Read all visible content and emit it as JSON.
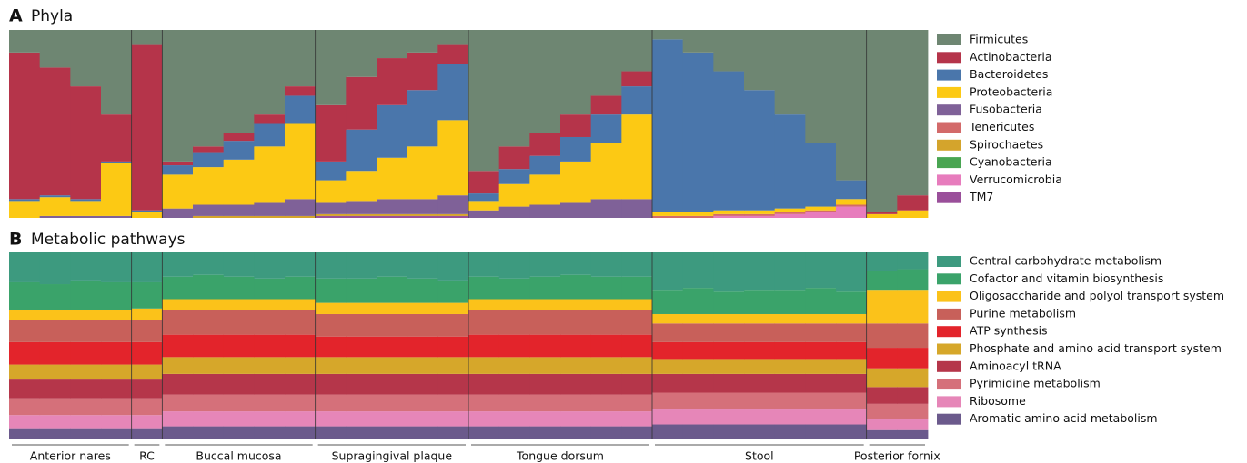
{
  "chart_data": [
    {
      "type": "bar",
      "stacked": true,
      "panel": "A",
      "title": "Phyla",
      "ylim": [
        0,
        100
      ],
      "series": [
        {
          "name": "Firmicutes",
          "color": "#6e8672",
          "values": [
            [
              12,
              20,
              30,
              45
            ],
            [
              8
            ],
            [
              70,
              62,
              55,
              45,
              30
            ],
            [
              40,
              25,
              15,
              12,
              8
            ],
            [
              75,
              62,
              55,
              45,
              35,
              22
            ],
            [
              5,
              12,
              22,
              32,
              45,
              60,
              80
            ],
            [
              97,
              88
            ]
          ]
        },
        {
          "name": "Actinobacteria",
          "color": "#b5344a",
          "values": [
            [
              78,
              68,
              60,
              25
            ],
            [
              88
            ],
            [
              2,
              3,
              4,
              5,
              5
            ],
            [
              30,
              28,
              25,
              20,
              10
            ],
            [
              12,
              12,
              12,
              12,
              10,
              8
            ],
            [
              0,
              0,
              0,
              0,
              0,
              0,
              0
            ],
            [
              1,
              8
            ]
          ]
        },
        {
          "name": "Bacteroidetes",
          "color": "#4a76ab",
          "values": [
            [
              1,
              1,
              1,
              1
            ],
            [
              1
            ],
            [
              5,
              8,
              10,
              12,
              15
            ],
            [
              10,
              22,
              28,
              30,
              30
            ],
            [
              4,
              8,
              10,
              13,
              15,
              15
            ],
            [
              92,
              85,
              74,
              64,
              50,
              34,
              10
            ],
            [
              0,
              0
            ]
          ]
        },
        {
          "name": "Proteobacteria",
          "color": "#fcc914",
          "values": [
            [
              9,
              10,
              8,
              28
            ],
            [
              3
            ],
            [
              18,
              20,
              24,
              30,
              40
            ],
            [
              12,
              16,
              22,
              28,
              40
            ],
            [
              5,
              12,
              16,
              22,
              30,
              45
            ],
            [
              2,
              2,
              2,
              2,
              2,
              2,
              3
            ],
            [
              2,
              4
            ]
          ]
        },
        {
          "name": "Fusobacteria",
          "color": "#7f6198",
          "values": [
            [
              0,
              1,
              1,
              1
            ],
            [
              0
            ],
            [
              5,
              6,
              6,
              7,
              9
            ],
            [
              6,
              7,
              8,
              8,
              10
            ],
            [
              4,
              6,
              7,
              8,
              10,
              10
            ],
            [
              0,
              0,
              0,
              0,
              0,
              0,
              0
            ],
            [
              0,
              0
            ]
          ]
        },
        {
          "name": "Tenericutes",
          "color": "#d36a6a",
          "values": [
            [
              0,
              0,
              0,
              0
            ],
            [
              0
            ],
            [
              0,
              0,
              0,
              0,
              0
            ],
            [
              0,
              0,
              0,
              0,
              0
            ],
            [
              0,
              0,
              0,
              0,
              0,
              0
            ],
            [
              1,
              1,
              1,
              1,
              1,
              1,
              1
            ],
            [
              0,
              0
            ]
          ]
        },
        {
          "name": "Spirochaetes",
          "color": "#d4a42c",
          "values": [
            [
              0,
              0,
              0,
              0
            ],
            [
              0
            ],
            [
              0,
              1,
              1,
              1,
              1
            ],
            [
              1,
              1,
              1,
              1,
              1
            ],
            [
              0,
              0,
              0,
              0,
              0,
              0
            ],
            [
              0,
              0,
              0,
              0,
              0,
              0,
              0
            ],
            [
              0,
              0
            ]
          ]
        },
        {
          "name": "Cyanobacteria",
          "color": "#49a552",
          "values": [
            [
              0,
              0,
              0,
              0
            ],
            [
              0
            ],
            [
              0,
              0,
              0,
              0,
              0
            ],
            [
              0,
              0,
              0,
              0,
              0
            ],
            [
              0,
              0,
              0,
              0,
              0,
              0
            ],
            [
              0,
              0,
              0,
              0,
              0,
              0,
              0
            ],
            [
              0,
              0
            ]
          ]
        },
        {
          "name": "Verrucomicrobia",
          "color": "#e77cbd",
          "values": [
            [
              0,
              0,
              0,
              0
            ],
            [
              0
            ],
            [
              0,
              0,
              0,
              0,
              0
            ],
            [
              0,
              0,
              0,
              0,
              0
            ],
            [
              0,
              0,
              0,
              0,
              0,
              0
            ],
            [
              0,
              0,
              1,
              1,
              2,
              3,
              6
            ],
            [
              0,
              0
            ]
          ]
        },
        {
          "name": "TM7",
          "color": "#9a4f9a",
          "values": [
            [
              0,
              0,
              0,
              0
            ],
            [
              0
            ],
            [
              0,
              0,
              0,
              0,
              0
            ],
            [
              1,
              1,
              1,
              1,
              1
            ],
            [
              0,
              0,
              0,
              0,
              0,
              0
            ],
            [
              0,
              0,
              0,
              0,
              0,
              0,
              0
            ],
            [
              0,
              0
            ]
          ]
        }
      ]
    },
    {
      "type": "bar",
      "stacked": true,
      "panel": "B",
      "title": "Metabolic pathways",
      "ylim": [
        0,
        100
      ],
      "categories": [
        "Anterior nares",
        "RC",
        "Buccal mucosa",
        "Supragingival plaque",
        "Tongue dorsum",
        "Stool",
        "Posterior fornix"
      ],
      "series": [
        {
          "name": "Central carbohydrate metabolism",
          "color": "#3d9a7f",
          "values": [
            [
              16,
              17,
              15,
              16
            ],
            [
              16
            ],
            [
              13,
              12,
              13,
              14,
              13
            ],
            [
              14,
              14,
              13,
              14,
              15
            ],
            [
              13,
              14,
              13,
              12,
              13,
              13
            ],
            [
              20,
              19,
              21,
              20,
              20,
              19,
              21
            ],
            [
              10,
              9
            ]
          ]
        },
        {
          "name": "Cofactor and vitamin biosynthesis",
          "color": "#3aa36a",
          "values": [
            [
              15,
              14,
              16,
              15
            ],
            [
              14
            ],
            [
              12,
              13,
              12,
              11,
              12
            ],
            [
              13,
              13,
              14,
              13,
              12
            ],
            [
              12,
              11,
              12,
              13,
              12,
              12
            ],
            [
              13,
              14,
              12,
              13,
              13,
              14,
              12
            ],
            [
              10,
              11
            ]
          ]
        },
        {
          "name": "Oligosaccharide and polyol transport system",
          "color": "#fbc21a",
          "values": [
            [
              5,
              5,
              5,
              5
            ],
            [
              6
            ],
            [
              6,
              6,
              6,
              6,
              6
            ],
            [
              6,
              6,
              6,
              6,
              6
            ],
            [
              6,
              6,
              6,
              6,
              6,
              6
            ],
            [
              5,
              5,
              5,
              5,
              5,
              5,
              5
            ],
            [
              18,
              18
            ]
          ]
        },
        {
          "name": "Purine metabolism",
          "color": "#c8605a",
          "values": [
            [
              12,
              12,
              12,
              12
            ],
            [
              12
            ],
            [
              13,
              13,
              13,
              13,
              13
            ],
            [
              12,
              12,
              12,
              12,
              12
            ],
            [
              13,
              13,
              13,
              13,
              13,
              13
            ],
            [
              10,
              10,
              10,
              10,
              10,
              10,
              10
            ],
            [
              13,
              13
            ]
          ]
        },
        {
          "name": "ATP synthesis",
          "color": "#e3242b",
          "values": [
            [
              12,
              12,
              12,
              12
            ],
            [
              12
            ],
            [
              12,
              12,
              12,
              12,
              12
            ],
            [
              11,
              11,
              11,
              11,
              11
            ],
            [
              12,
              12,
              12,
              12,
              12,
              12
            ],
            [
              9,
              9,
              9,
              9,
              9,
              9,
              9
            ],
            [
              11,
              11
            ]
          ]
        },
        {
          "name": "Phosphate and amino acid transport system",
          "color": "#d6a72a",
          "values": [
            [
              8,
              8,
              8,
              8
            ],
            [
              8
            ],
            [
              9,
              9,
              9,
              9,
              9
            ],
            [
              9,
              9,
              9,
              9,
              9
            ],
            [
              9,
              9,
              9,
              9,
              9,
              9
            ],
            [
              8,
              8,
              8,
              8,
              8,
              8,
              8
            ],
            [
              10,
              10
            ]
          ]
        },
        {
          "name": "Aminoacyl tRNA",
          "color": "#b5364a",
          "values": [
            [
              10,
              10,
              10,
              10
            ],
            [
              10
            ],
            [
              11,
              11,
              11,
              11,
              11
            ],
            [
              11,
              11,
              11,
              11,
              11
            ],
            [
              11,
              11,
              11,
              11,
              11,
              11
            ],
            [
              10,
              10,
              10,
              10,
              10,
              10,
              10
            ],
            [
              9,
              9
            ]
          ]
        },
        {
          "name": "Pyrimidine metabolism",
          "color": "#d5707a",
          "values": [
            [
              9,
              9,
              9,
              9
            ],
            [
              9
            ],
            [
              9,
              9,
              9,
              9,
              9
            ],
            [
              9,
              9,
              9,
              9,
              9
            ],
            [
              9,
              9,
              9,
              9,
              9,
              9
            ],
            [
              9,
              9,
              9,
              9,
              9,
              9,
              9
            ],
            [
              8,
              8
            ]
          ]
        },
        {
          "name": "Ribosome",
          "color": "#e686b8",
          "values": [
            [
              7,
              7,
              7,
              7
            ],
            [
              7
            ],
            [
              8,
              8,
              8,
              8,
              8
            ],
            [
              8,
              8,
              8,
              8,
              8
            ],
            [
              8,
              8,
              8,
              8,
              8,
              8
            ],
            [
              8,
              8,
              8,
              8,
              8,
              8,
              8
            ],
            [
              6,
              6
            ]
          ]
        },
        {
          "name": "Aromatic amino acid metabolism",
          "color": "#6b5a8c",
          "values": [
            [
              6,
              6,
              6,
              6
            ],
            [
              6
            ],
            [
              7,
              7,
              7,
              7,
              7
            ],
            [
              7,
              7,
              7,
              7,
              7
            ],
            [
              7,
              7,
              7,
              7,
              7,
              7
            ],
            [
              8,
              8,
              8,
              8,
              8,
              8,
              8
            ],
            [
              5,
              5
            ]
          ]
        }
      ]
    }
  ]
}
